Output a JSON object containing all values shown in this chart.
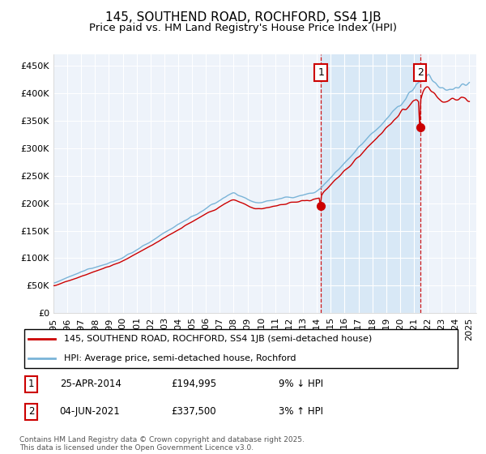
{
  "title": "145, SOUTHEND ROAD, ROCHFORD, SS4 1JB",
  "subtitle": "Price paid vs. HM Land Registry's House Price Index (HPI)",
  "ylim": [
    0,
    470000
  ],
  "year_start": 1995,
  "year_end": 2025,
  "hpi_color": "#7ab4d8",
  "price_color": "#cc0000",
  "background_color": "#eef3fa",
  "shade_color": "#d0e4f5",
  "grid_color": "#ffffff",
  "sale1_year": 2014.29,
  "sale2_year": 2021.45,
  "sale1": {
    "date": "25-APR-2014",
    "price": 194995,
    "label": "1",
    "pct": "9%",
    "dir": "↓"
  },
  "sale2": {
    "date": "04-JUN-2021",
    "price": 337500,
    "label": "2",
    "pct": "3%",
    "dir": "↑"
  },
  "legend_line1": "145, SOUTHEND ROAD, ROCHFORD, SS4 1JB (semi-detached house)",
  "legend_line2": "HPI: Average price, semi-detached house, Rochford",
  "footnote": "Contains HM Land Registry data © Crown copyright and database right 2025.\nThis data is licensed under the Open Government Licence v3.0.",
  "title_fontsize": 11,
  "subtitle_fontsize": 9.5
}
